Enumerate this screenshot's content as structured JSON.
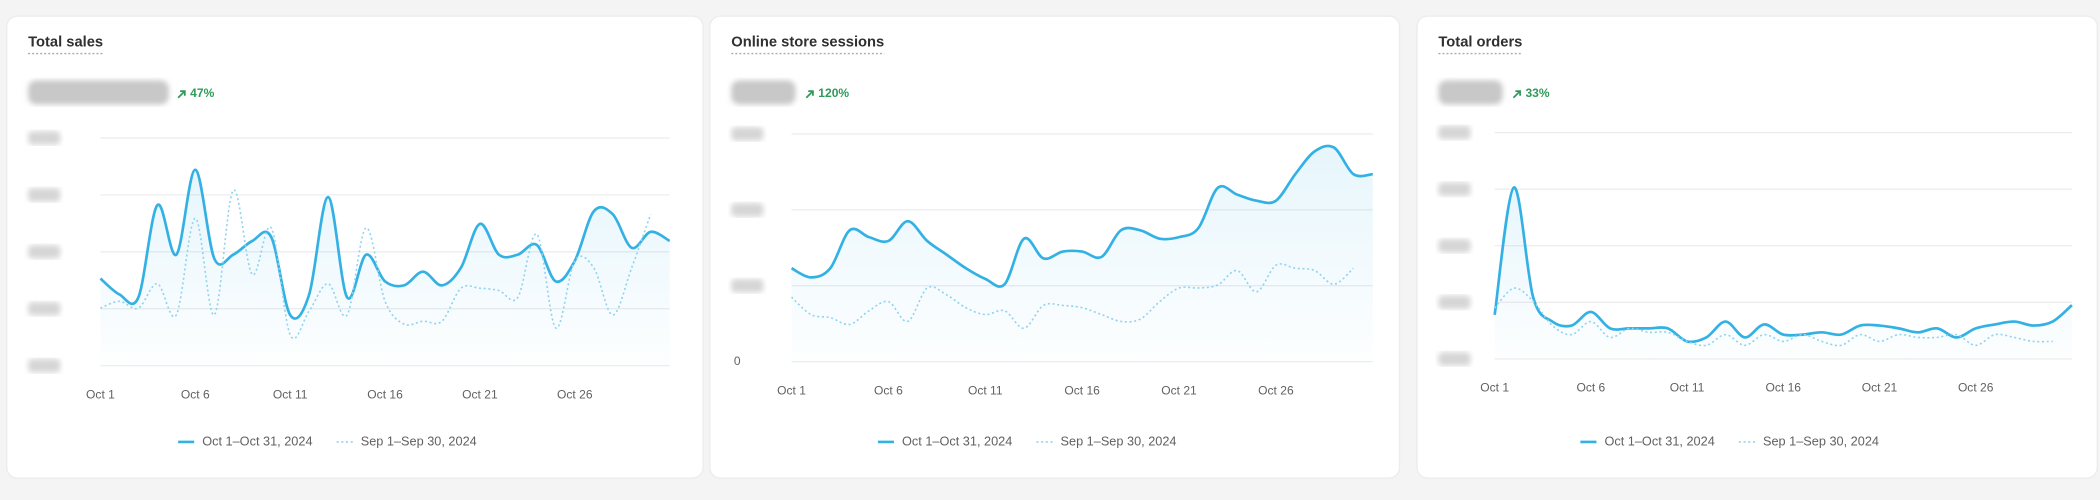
{
  "chart_data": [
    {
      "type": "line",
      "title": "Total sales",
      "change": "47%",
      "categories": [
        "Oct 1",
        null,
        null,
        null,
        null,
        "Oct 6",
        null,
        null,
        null,
        null,
        "Oct 11",
        null,
        null,
        null,
        null,
        "Oct 16",
        null,
        null,
        null,
        null,
        "Oct 21",
        null,
        null,
        null,
        null,
        "Oct 26",
        null,
        null,
        null,
        null,
        null
      ],
      "series": [
        {
          "name": "Oct 1–Oct 31, 2024",
          "color": "#33b1e4",
          "values": [
            1.53,
            1.25,
            1.2,
            2.82,
            1.95,
            3.44,
            1.88,
            1.95,
            2.19,
            2.26,
            0.89,
            1.25,
            2.96,
            1.2,
            1.95,
            1.48,
            1.41,
            1.65,
            1.41,
            1.72,
            2.49,
            1.95,
            1.95,
            2.12,
            1.48,
            1.84,
            2.71,
            2.66,
            2.07,
            2.35,
            2.19
          ]
        },
        {
          "name": "Sep 1–Sep 30, 2024",
          "color": "#8fd3ee",
          "values": [
            1.01,
            1.13,
            1.01,
            1.44,
            0.89,
            2.59,
            0.89,
            3.08,
            1.6,
            2.42,
            0.54,
            0.96,
            1.44,
            0.89,
            2.42,
            1.13,
            0.73,
            0.78,
            0.78,
            1.36,
            1.36,
            1.32,
            1.2,
            2.31,
            0.66,
            1.84,
            1.72,
            0.89,
            1.72,
            2.66,
            null
          ]
        }
      ],
      "ylim": [
        0,
        4
      ],
      "yticks": [
        0,
        1,
        2,
        3,
        4
      ],
      "grid": true
    },
    {
      "type": "line",
      "title": "Online store sessions",
      "change": "120%",
      "categories": [
        "Oct 1",
        null,
        null,
        null,
        null,
        "Oct 6",
        null,
        null,
        null,
        null,
        "Oct 11",
        null,
        null,
        null,
        null,
        "Oct 16",
        null,
        null,
        null,
        null,
        "Oct 21",
        null,
        null,
        null,
        null,
        "Oct 26",
        null,
        null,
        null,
        null,
        null
      ],
      "series": [
        {
          "name": "Oct 1–Oct 31, 2024",
          "color": "#33b1e4",
          "values": [
            1.23,
            1.11,
            1.23,
            1.73,
            1.64,
            1.59,
            1.85,
            1.59,
            1.41,
            1.23,
            1.09,
            1.02,
            1.62,
            1.36,
            1.45,
            1.45,
            1.38,
            1.73,
            1.73,
            1.62,
            1.64,
            1.76,
            2.29,
            2.2,
            2.12,
            2.12,
            2.47,
            2.77,
            2.82,
            2.47,
            2.47
          ]
        },
        {
          "name": "Sep 1–Sep 30, 2024",
          "color": "#8fd3ee",
          "values": [
            0.85,
            0.62,
            0.58,
            0.49,
            0.67,
            0.79,
            0.53,
            0.97,
            0.88,
            0.71,
            0.62,
            0.67,
            0.44,
            0.74,
            0.74,
            0.71,
            0.62,
            0.53,
            0.56,
            0.79,
            0.97,
            0.97,
            1.01,
            1.2,
            0.92,
            1.27,
            1.23,
            1.2,
            1.02,
            1.23,
            null
          ]
        }
      ],
      "ylim": [
        0,
        3
      ],
      "yticks": [
        {
          "value": 0,
          "label": "0"
        },
        1,
        2,
        3
      ],
      "grid": true
    },
    {
      "type": "line",
      "title": "Total orders",
      "change": "33%",
      "categories": [
        "Oct 1",
        null,
        null,
        null,
        null,
        "Oct 6",
        null,
        null,
        null,
        null,
        "Oct 11",
        null,
        null,
        null,
        null,
        "Oct 16",
        null,
        null,
        null,
        null,
        "Oct 21",
        null,
        null,
        null,
        null,
        "Oct 26",
        null,
        null,
        null,
        null,
        null
      ],
      "series": [
        {
          "name": "Oct 1–Oct 31, 2024",
          "color": "#33b1e4",
          "values": [
            0.78,
            3.03,
            1.09,
            0.66,
            0.59,
            0.83,
            0.54,
            0.54,
            0.54,
            0.54,
            0.31,
            0.38,
            0.66,
            0.38,
            0.61,
            0.43,
            0.43,
            0.47,
            0.43,
            0.59,
            0.59,
            0.54,
            0.47,
            0.54,
            0.38,
            0.54,
            0.61,
            0.66,
            0.59,
            0.66,
            0.95
          ]
        },
        {
          "name": "Sep 1–Sep 30, 2024",
          "color": "#8fd3ee",
          "values": [
            0.9,
            1.25,
            1.02,
            0.59,
            0.43,
            0.66,
            0.38,
            0.54,
            0.47,
            0.47,
            0.31,
            0.24,
            0.43,
            0.24,
            0.43,
            0.31,
            0.43,
            0.31,
            0.24,
            0.43,
            0.31,
            0.43,
            0.38,
            0.38,
            0.43,
            0.24,
            0.43,
            0.38,
            0.31,
            0.31,
            null
          ]
        }
      ],
      "ylim": [
        0,
        4
      ],
      "yticks": [
        0,
        1,
        2,
        3,
        4
      ],
      "grid": true
    }
  ]
}
